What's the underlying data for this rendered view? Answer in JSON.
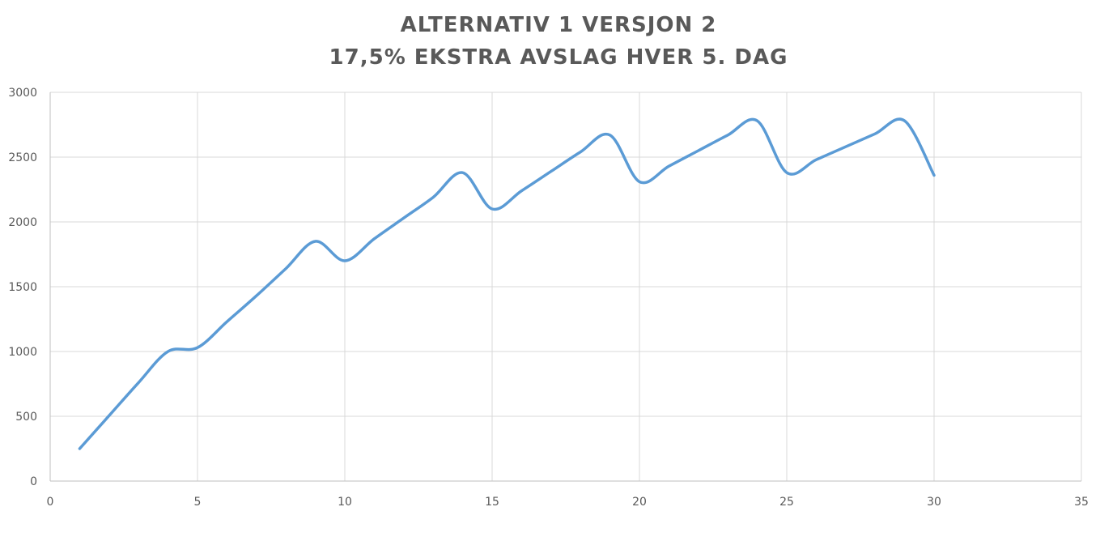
{
  "chart_data": {
    "type": "line",
    "title": [
      "ALTERNATIV 1 VERSJON 2",
      "17,5% EKSTRA AVSLAG HVER 5. DAG"
    ],
    "xlabel": "",
    "ylabel": "",
    "xlim": [
      0,
      35
    ],
    "ylim": [
      0,
      3000
    ],
    "xticks": [
      0,
      5,
      10,
      15,
      20,
      25,
      30,
      35
    ],
    "yticks": [
      0,
      500,
      1000,
      1500,
      2000,
      2500,
      3000
    ],
    "grid": true,
    "legend": "none",
    "series": [
      {
        "color": "#5b9bd5",
        "x": [
          1,
          2,
          3,
          4,
          5,
          6,
          7,
          8,
          9,
          10,
          11,
          12,
          13,
          14,
          15,
          16,
          17,
          18,
          19,
          20,
          21,
          22,
          23,
          24,
          25,
          26,
          27,
          28,
          29,
          30
        ],
        "y": [
          250,
          505,
          760,
          1000,
          1030,
          1230,
          1430,
          1640,
          1850,
          1700,
          1870,
          2030,
          2190,
          2380,
          2100,
          2240,
          2390,
          2540,
          2670,
          2310,
          2430,
          2550,
          2670,
          2780,
          2380,
          2480,
          2580,
          2680,
          2780,
          2360
        ]
      }
    ]
  }
}
